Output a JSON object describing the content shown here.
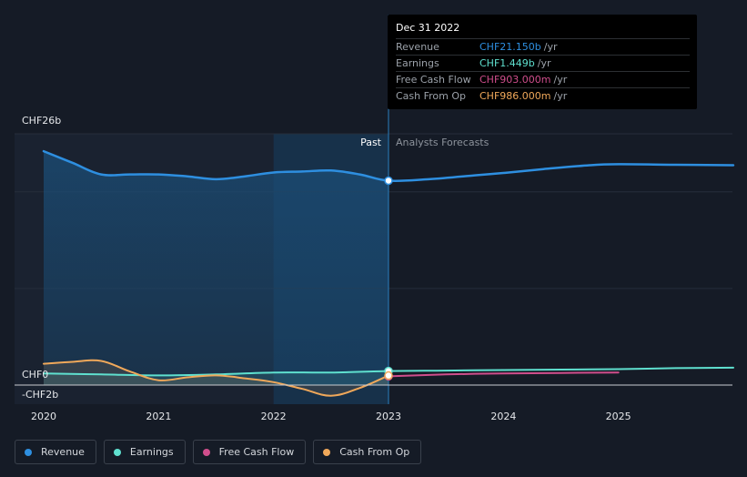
{
  "chart_data": {
    "type": "line",
    "currency": "CHF",
    "y_labels": [
      "CHF26b",
      "CHF0",
      "-CHF2b"
    ],
    "ylim": [
      -2,
      26
    ],
    "x_ticks": [
      "2020",
      "2021",
      "2022",
      "2023",
      "2024",
      "2025"
    ],
    "region_labels": {
      "past": "Past",
      "forecast": "Analysts Forecasts"
    },
    "divider_date": 2023.0,
    "highlight_start": 2022.0,
    "series": [
      {
        "name": "Revenue",
        "color": "#2e8fe0",
        "points": [
          [
            2020.0,
            24.2
          ],
          [
            2020.25,
            23.0
          ],
          [
            2020.5,
            21.8
          ],
          [
            2020.75,
            21.8
          ],
          [
            2021.0,
            21.8
          ],
          [
            2021.25,
            21.6
          ],
          [
            2021.5,
            21.3
          ],
          [
            2021.75,
            21.6
          ],
          [
            2022.0,
            22.0
          ],
          [
            2022.25,
            22.1
          ],
          [
            2022.5,
            22.2
          ],
          [
            2022.75,
            21.8
          ],
          [
            2023.0,
            21.15
          ],
          [
            2023.35,
            21.3
          ],
          [
            2023.75,
            21.7
          ],
          [
            2024.0,
            21.95
          ],
          [
            2024.35,
            22.35
          ],
          [
            2024.75,
            22.75
          ],
          [
            2025.0,
            22.85
          ],
          [
            2025.5,
            22.8
          ],
          [
            2026.0,
            22.75
          ]
        ]
      },
      {
        "name": "Earnings",
        "color": "#5fe0cf",
        "points": [
          [
            2020.0,
            1.2
          ],
          [
            2020.5,
            1.1
          ],
          [
            2021.0,
            1.0
          ],
          [
            2021.5,
            1.1
          ],
          [
            2022.0,
            1.3
          ],
          [
            2022.5,
            1.3
          ],
          [
            2023.0,
            1.449
          ],
          [
            2023.5,
            1.5
          ],
          [
            2024.0,
            1.55
          ],
          [
            2024.5,
            1.6
          ],
          [
            2025.0,
            1.65
          ],
          [
            2025.5,
            1.75
          ],
          [
            2026.0,
            1.8
          ]
        ]
      },
      {
        "name": "Free Cash Flow",
        "color": "#d04e8c",
        "points": [
          [
            2023.0,
            0.903
          ],
          [
            2023.5,
            1.1
          ],
          [
            2024.0,
            1.2
          ],
          [
            2024.5,
            1.25
          ],
          [
            2025.0,
            1.3
          ]
        ]
      },
      {
        "name": "Cash From Op",
        "color": "#f0a85a",
        "points": [
          [
            2020.0,
            2.2
          ],
          [
            2020.25,
            2.4
          ],
          [
            2020.5,
            2.5
          ],
          [
            2020.75,
            1.4
          ],
          [
            2021.0,
            0.5
          ],
          [
            2021.25,
            0.8
          ],
          [
            2021.5,
            1.0
          ],
          [
            2021.75,
            0.7
          ],
          [
            2022.0,
            0.3
          ],
          [
            2022.25,
            -0.4
          ],
          [
            2022.5,
            -1.1
          ],
          [
            2022.75,
            -0.3
          ],
          [
            2023.0,
            0.986
          ]
        ]
      }
    ],
    "tooltip": {
      "date": "Dec 31 2022",
      "rows": [
        {
          "name": "Revenue",
          "value": "CHF21.150b",
          "unit": "/yr",
          "color": "#2e8fe0"
        },
        {
          "name": "Earnings",
          "value": "CHF1.449b",
          "unit": "/yr",
          "color": "#5fe0cf"
        },
        {
          "name": "Free Cash Flow",
          "value": "CHF903.000m",
          "unit": "/yr",
          "color": "#d04e8c"
        },
        {
          "name": "Cash From Op",
          "value": "CHF986.000m",
          "unit": "/yr",
          "color": "#f0a85a"
        }
      ]
    },
    "legend": [
      {
        "name": "Revenue",
        "color": "#2e8fe0"
      },
      {
        "name": "Earnings",
        "color": "#5fe0cf"
      },
      {
        "name": "Free Cash Flow",
        "color": "#d04e8c"
      },
      {
        "name": "Cash From Op",
        "color": "#f0a85a"
      }
    ]
  }
}
